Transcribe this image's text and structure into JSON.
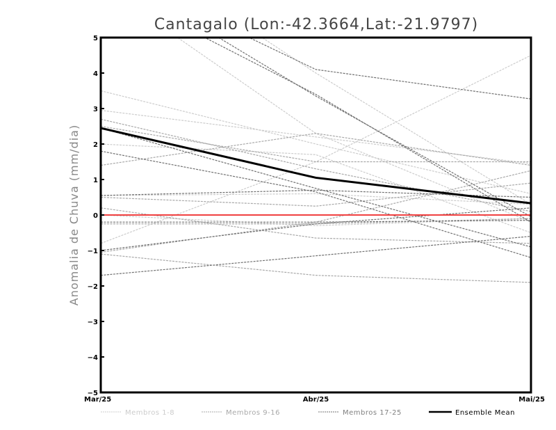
{
  "chart_data": {
    "type": "line",
    "title": "Cantagalo (Lon:-42.3664,Lat:-21.9797)",
    "xlabel": "",
    "ylabel": "Anomalia de Chuva (mm/dia)",
    "categories": [
      "Mar/25",
      "Abr/25",
      "Mai/25"
    ],
    "ylim": [
      -5,
      5
    ],
    "yticks": [
      -5,
      -4,
      -3,
      -2,
      -1,
      0,
      1,
      2,
      3,
      4,
      5
    ],
    "grid": false,
    "legend_position": "bottom",
    "legend": [
      "Membros 1-8",
      "Membros 9-16",
      "Membros 17-25",
      "Ensemble Mean"
    ],
    "colors": {
      "group1": "#cccccc",
      "group2": "#a8a8a8",
      "group3": "#707070",
      "mean": "#000000",
      "zero": "#f04040"
    },
    "series": [
      {
        "name": "Membro 1",
        "group": 1,
        "values": [
          3.5,
          2.0,
          0.6
        ]
      },
      {
        "name": "Membro 2",
        "group": 1,
        "values": [
          2.95,
          2.2,
          1.45
        ]
      },
      {
        "name": "Membro 3",
        "group": 1,
        "values": [
          -0.8,
          1.5,
          4.5
        ]
      },
      {
        "name": "Membro 4",
        "group": 1,
        "values": [
          6.5,
          2.3,
          -0.2
        ]
      },
      {
        "name": "Membro 5",
        "group": 1,
        "values": [
          0.0,
          -0.3,
          -0.1
        ]
      },
      {
        "name": "Membro 6",
        "group": 1,
        "values": [
          8.0,
          4.0,
          0.3
        ]
      },
      {
        "name": "Membro 7",
        "group": 1,
        "values": [
          0.55,
          0.6,
          0.3
        ]
      },
      {
        "name": "Membro 8",
        "group": 1,
        "values": [
          2.0,
          1.7,
          -0.5
        ]
      },
      {
        "name": "Membro 9",
        "group": 2,
        "values": [
          1.4,
          2.3,
          1.4
        ]
      },
      {
        "name": "Membro 10",
        "group": 2,
        "values": [
          2.5,
          1.5,
          1.5
        ]
      },
      {
        "name": "Membro 11",
        "group": 2,
        "values": [
          0.5,
          0.25,
          0.9
        ]
      },
      {
        "name": "Membro 12",
        "group": 2,
        "values": [
          -1.05,
          -0.2,
          1.25
        ]
      },
      {
        "name": "Membro 13",
        "group": 2,
        "values": [
          0.2,
          -0.65,
          -0.8
        ]
      },
      {
        "name": "Membro 14",
        "group": 2,
        "values": [
          -1.1,
          -1.7,
          -1.9
        ]
      },
      {
        "name": "Membro 15",
        "group": 2,
        "values": [
          -0.25,
          -0.25,
          -0.1
        ]
      },
      {
        "name": "Membro 16",
        "group": 2,
        "values": [
          2.7,
          1.3,
          0.1
        ]
      },
      {
        "name": "Membro 17",
        "group": 3,
        "values": [
          7.0,
          4.1,
          3.27
        ]
      },
      {
        "name": "Membro 18",
        "group": 3,
        "values": [
          6.5,
          3.4,
          -0.2
        ]
      },
      {
        "name": "Membro 19",
        "group": 3,
        "values": [
          7.0,
          3.35,
          -0.05
        ]
      },
      {
        "name": "Membro 20",
        "group": 3,
        "values": [
          2.45,
          0.75,
          -0.9
        ]
      },
      {
        "name": "Membro 21",
        "group": 3,
        "values": [
          1.8,
          0.65,
          -1.2
        ]
      },
      {
        "name": "Membro 22",
        "group": 3,
        "values": [
          -1.7,
          -1.15,
          -0.6
        ]
      },
      {
        "name": "Membro 23",
        "group": 3,
        "values": [
          -1.0,
          -0.25,
          0.2
        ]
      },
      {
        "name": "Membro 24",
        "group": 3,
        "values": [
          -0.2,
          -0.2,
          -0.15
        ]
      },
      {
        "name": "Membro 25",
        "group": 3,
        "values": [
          0.55,
          0.7,
          0.5
        ]
      },
      {
        "name": "Ensemble Mean",
        "group": 0,
        "values": [
          2.45,
          1.05,
          0.33
        ]
      }
    ],
    "reference_line": 0
  }
}
